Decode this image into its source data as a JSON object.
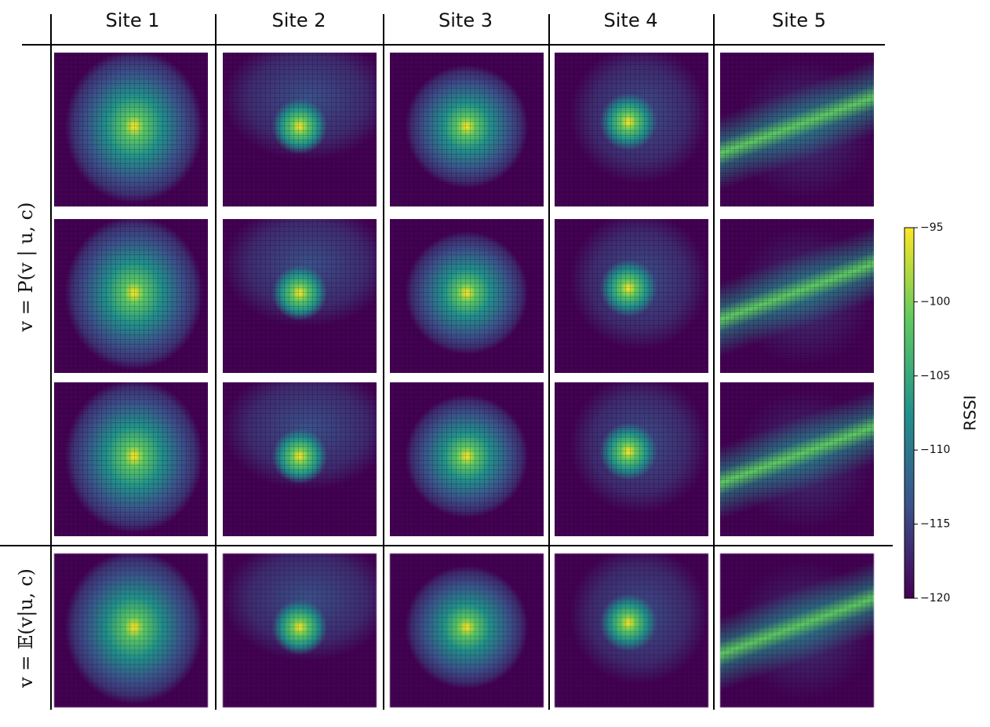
{
  "columns": [
    "Site 1",
    "Site 2",
    "Site 3",
    "Site 4",
    "Site 5"
  ],
  "rows": [
    "v = P(v | u, c)",
    "v = 𝔼(v|u, c)"
  ],
  "colorbar": {
    "label": "RSSI",
    "lim": [
      -120,
      -95
    ],
    "ticks": [
      {
        "value": -95,
        "label": "−95"
      },
      {
        "value": -100,
        "label": "−100"
      },
      {
        "value": -105,
        "label": "−105"
      },
      {
        "value": -110,
        "label": "−110"
      },
      {
        "value": -115,
        "label": "−115"
      },
      {
        "value": -120,
        "label": "−120"
      }
    ]
  }
}
